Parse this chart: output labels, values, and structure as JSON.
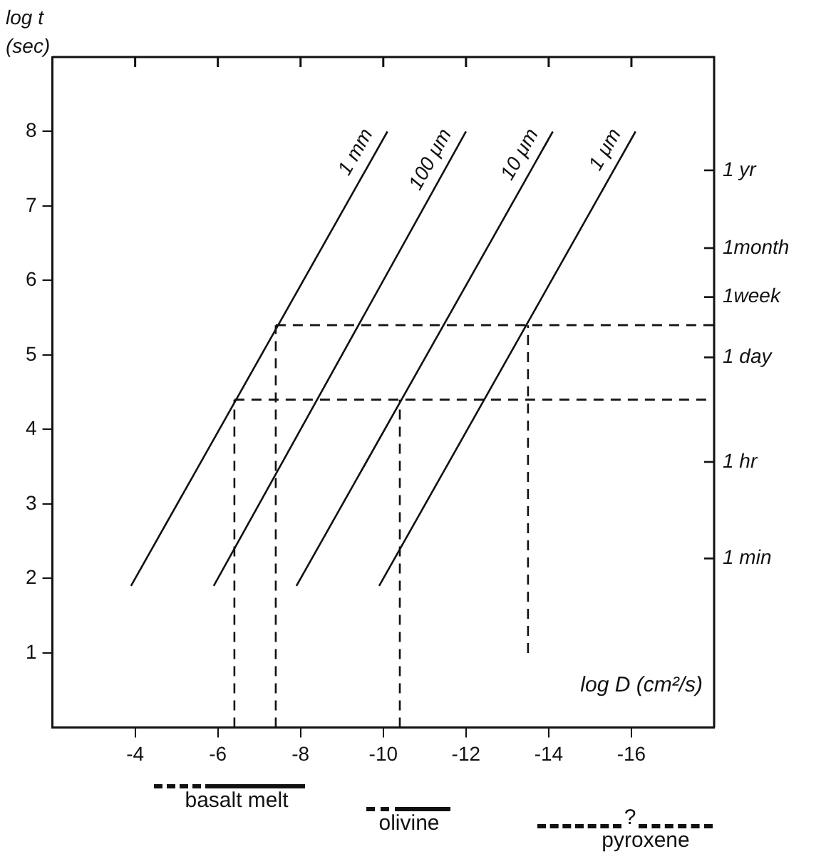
{
  "chart_data": [
    {
      "type": "line",
      "ylabel": "log t\n(sec)",
      "xlabel": "log D (cm²/s)",
      "xlim": [
        -2,
        -18
      ],
      "xticks": [
        -4,
        -6,
        -8,
        -10,
        -12,
        -14,
        -16
      ],
      "ylim": [
        0,
        9
      ],
      "yticks": [
        1,
        2,
        3,
        4,
        5,
        6,
        7,
        8
      ],
      "marker": "none",
      "line_style": "solid",
      "series": [
        {
          "name": "1 mm",
          "color": "#111111",
          "x": [
            -3.9,
            -10.1
          ],
          "values": [
            1.9,
            8
          ]
        },
        {
          "name": "100 μm",
          "color": "#111111",
          "x": [
            -5.9,
            -12
          ],
          "values": [
            1.9,
            8
          ]
        },
        {
          "name": "10 μm",
          "color": "#111111",
          "x": [
            -7.9,
            -14.1
          ],
          "values": [
            1.9,
            8
          ]
        },
        {
          "name": "1 μm",
          "color": "#111111",
          "x": [
            -9.9,
            -16.1
          ],
          "values": [
            1.9,
            8
          ]
        },
        {
          "color": "#111111",
          "line_style": "dashed",
          "x": [
            -6.4,
            -18
          ],
          "values": [
            4.4,
            4.4
          ]
        },
        {
          "color": "#111111",
          "line_style": "dashed",
          "x": [
            -7.4,
            -18
          ],
          "values": [
            5.4,
            5.4
          ]
        },
        {
          "color": "#111111",
          "line_style": "dashed",
          "x": [
            -6.4,
            -6.4
          ],
          "values": [
            0,
            4.4
          ]
        },
        {
          "color": "#111111",
          "line_style": "dashed",
          "x": [
            -7.4,
            -7.4
          ],
          "values": [
            0,
            5.4
          ]
        },
        {
          "color": "#111111",
          "line_style": "dashed",
          "x": [
            -10.4,
            -10.4
          ],
          "values": [
            0,
            4.4
          ]
        },
        {
          "color": "#111111",
          "line_style": "dashed",
          "x": [
            -13.5,
            -13.5
          ],
          "values": [
            1,
            5.4
          ]
        }
      ],
      "annotations": [
        "1 yr",
        "1month",
        "1week",
        "1 day",
        "1 hr",
        "1 min"
      ]
    },
    {
      "type": "other",
      "annotations": [
        "basalt melt",
        "olivine",
        "?",
        "pyroxene"
      ]
    }
  ]
}
